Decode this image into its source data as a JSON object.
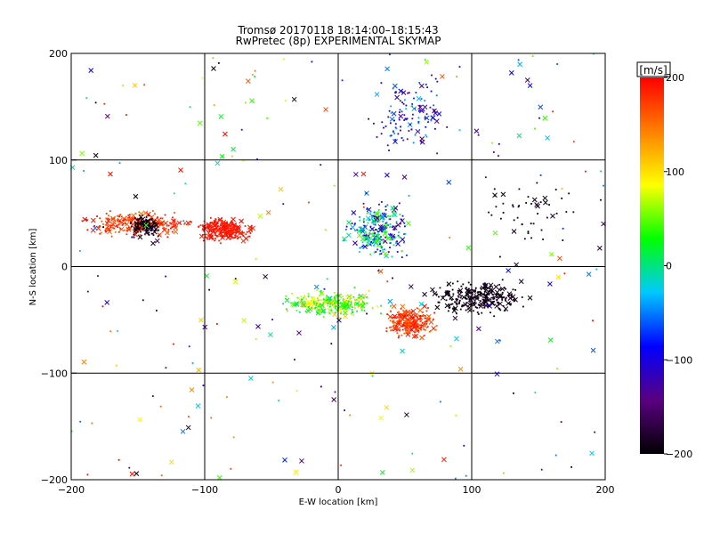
{
  "chart_data": {
    "type": "scatter",
    "title": "Tromsø 20170118  18:14:00–18:15:43",
    "subtitle": "RwPretec (8p) EXPERIMENTAL SKYMAP",
    "xlabel": "E-W location [km]",
    "ylabel": "N-S location [km]",
    "xlim": [
      -200,
      200
    ],
    "ylim": [
      -200,
      200
    ],
    "xticks": [
      -200,
      -100,
      0,
      100,
      200
    ],
    "yticks": [
      -200,
      -100,
      0,
      100,
      200
    ],
    "grid": true,
    "markers": [
      "dot",
      "cross"
    ],
    "colorbar": {
      "label": "[m/s]",
      "min": -200,
      "max": 200,
      "ticks": [
        200,
        100,
        0,
        -100,
        -200
      ],
      "colormap": [
        "#000000",
        "#5a0080",
        "#0000ff",
        "#00c8ff",
        "#00ff00",
        "#ffff00",
        "#ff8000",
        "#ff0000"
      ]
    },
    "clusters": [
      {
        "x": [
          -200,
          -100
        ],
        "y": [
          25,
          55
        ],
        "velocity": [
          150,
          200
        ],
        "density": "high"
      },
      {
        "x": [
          -110,
          -60
        ],
        "y": [
          20,
          50
        ],
        "velocity": [
          180,
          200
        ],
        "density": "high"
      },
      {
        "x": [
          -160,
          -130
        ],
        "y": [
          25,
          50
        ],
        "velocity": [
          -200,
          -180
        ],
        "density": "medium"
      },
      {
        "x": [
          -50,
          40
        ],
        "y": [
          -50,
          -20
        ],
        "velocity": [
          0,
          120
        ],
        "density": "high"
      },
      {
        "x": [
          30,
          80
        ],
        "y": [
          -70,
          -35
        ],
        "velocity": [
          150,
          200
        ],
        "density": "high"
      },
      {
        "x": [
          60,
          150
        ],
        "y": [
          -50,
          -10
        ],
        "velocity": [
          -200,
          -180
        ],
        "density": "high"
      },
      {
        "x": [
          0,
          60
        ],
        "y": [
          0,
          70
        ],
        "velocity": [
          -150,
          50
        ],
        "density": "high"
      },
      {
        "x": [
          20,
          90
        ],
        "y": [
          100,
          190
        ],
        "velocity": [
          -150,
          -30
        ],
        "density": "medium"
      },
      {
        "x": [
          80,
          200
        ],
        "y": [
          0,
          100
        ],
        "velocity": [
          -200,
          -180
        ],
        "density": "low"
      }
    ]
  }
}
